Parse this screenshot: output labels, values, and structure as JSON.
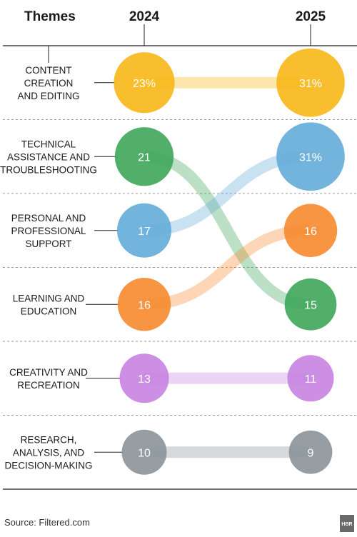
{
  "header": {
    "themes_label": "Themes",
    "col_left": "2024",
    "col_right": "2025"
  },
  "source": "Source: Filtered.com",
  "logo": "HBR",
  "chart_data": {
    "type": "bump",
    "unit": "%",
    "x": [
      "2024",
      "2025"
    ],
    "series": [
      {
        "name": "Content creation and editing",
        "lines": [
          "Content",
          "creation",
          "and editing"
        ],
        "values": [
          23,
          31
        ],
        "labels": [
          "23%",
          "31%"
        ],
        "color": "#f7b717"
      },
      {
        "name": "Technical assistance and troubleshooting",
        "lines": [
          "Technical",
          "assistance and",
          "troubleshooting"
        ],
        "values": [
          21,
          15
        ],
        "labels": [
          "21",
          "15"
        ],
        "color": "#3ea65a"
      },
      {
        "name": "Personal and professional support",
        "lines": [
          "Personal and",
          "professional",
          "support"
        ],
        "values": [
          17,
          31
        ],
        "labels": [
          "17",
          "31%"
        ],
        "color": "#64acd8"
      },
      {
        "name": "Learning and education",
        "lines": [
          "Learning and",
          "education"
        ],
        "values": [
          16,
          16
        ],
        "labels": [
          "16",
          "16"
        ],
        "color": "#f6892f"
      },
      {
        "name": "Creativity and recreation",
        "lines": [
          "Creativity and",
          "recreation"
        ],
        "values": [
          13,
          11
        ],
        "labels": [
          "13",
          "11"
        ],
        "color": "#c783e0"
      },
      {
        "name": "Research, analysis, and decision-making",
        "lines": [
          "Research,",
          "analysis, and",
          "decision-making"
        ],
        "values": [
          10,
          9
        ],
        "labels": [
          "10",
          "9"
        ],
        "color": "#8b9399"
      }
    ]
  }
}
